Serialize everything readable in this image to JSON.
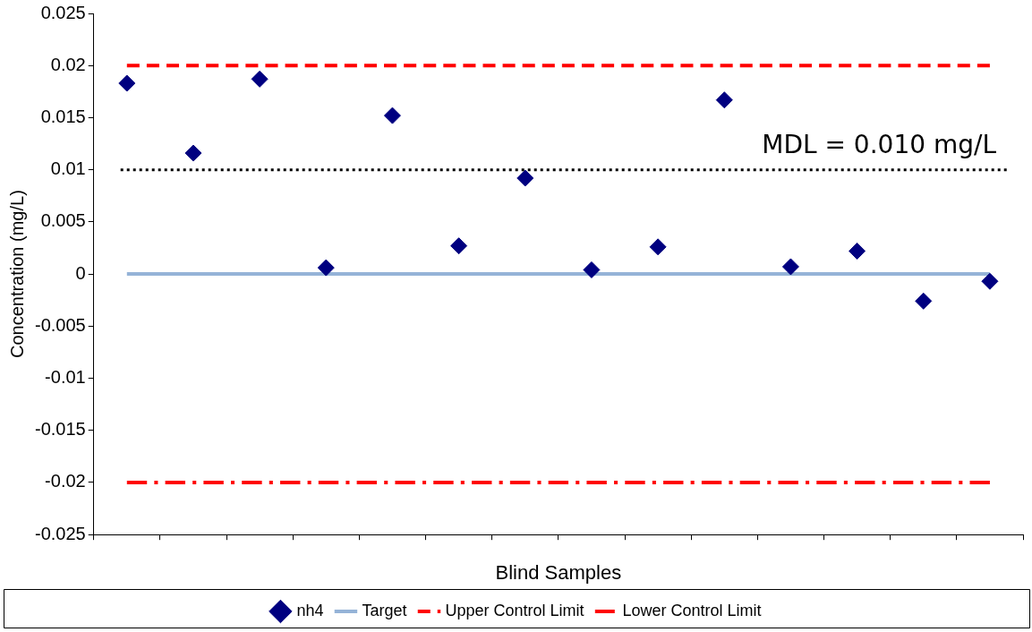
{
  "chart_data": {
    "type": "scatter",
    "xlabel": "Blind Samples",
    "ylabel": "Concentration (mg/L)",
    "categories": [
      null,
      null,
      null,
      null,
      null,
      null,
      null,
      null,
      null,
      null,
      null,
      null,
      null,
      null
    ],
    "series": [
      {
        "name": "nh4",
        "color": "#000080",
        "marker": "diamond",
        "values": [
          0.0183,
          0.0116,
          0.0187,
          0.0006,
          0.0152,
          0.0027,
          0.0092,
          0.0004,
          0.0026,
          0.0167,
          0.0007,
          0.0022,
          -0.0026,
          -0.0007
        ]
      },
      {
        "name": "Target",
        "type": "line",
        "color": "#95b3d7",
        "marker": "none",
        "line_style": "solid",
        "values": [
          0,
          0,
          0,
          0,
          0,
          0,
          0,
          0,
          0,
          0,
          0,
          0,
          0,
          0
        ]
      },
      {
        "name": "Upper Control Limit",
        "type": "line",
        "color": "#ff0000",
        "marker": "none",
        "line_style": "dashed",
        "values": [
          0.02,
          0.02,
          0.02,
          0.02,
          0.02,
          0.02,
          0.02,
          0.02,
          0.02,
          0.02,
          0.02,
          0.02,
          0.02,
          0.02
        ]
      },
      {
        "name": "Lower Control Limit",
        "type": "line",
        "color": "#ff0000",
        "marker": "none",
        "line_style": "dashdot",
        "values": [
          -0.02,
          -0.02,
          -0.02,
          -0.02,
          -0.02,
          -0.02,
          -0.02,
          -0.02,
          -0.02,
          -0.02,
          -0.02,
          -0.02,
          -0.02,
          -0.02
        ]
      }
    ],
    "ref_lines": [
      {
        "axis": "y",
        "value": 0.01,
        "label": "MDL = 0.010 mg/L",
        "color": "#000000",
        "line_style": "dotted"
      }
    ],
    "ylim": [
      -0.025,
      0.025
    ],
    "yticks": [
      -0.025,
      -0.02,
      -0.015,
      -0.01,
      -0.005,
      0,
      0.005,
      0.01,
      0.015,
      0.02,
      0.025
    ],
    "grid": false,
    "legend": "bottom"
  }
}
